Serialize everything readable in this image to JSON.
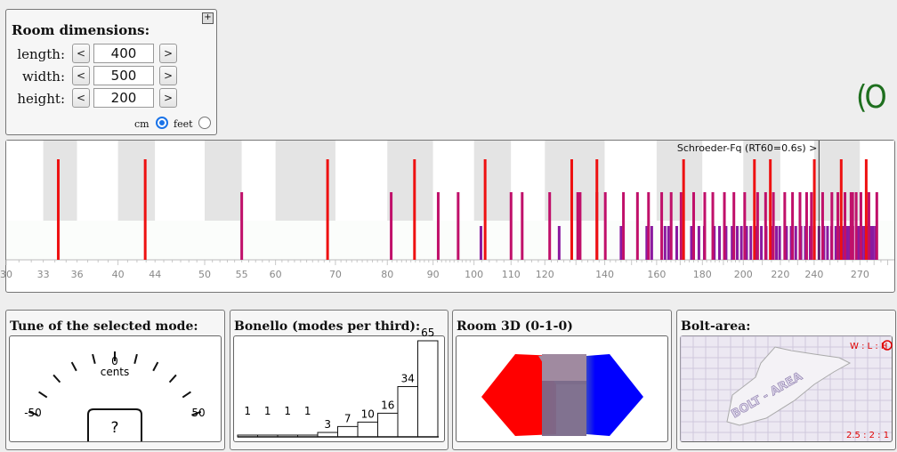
{
  "room": {
    "title": "Room dimensions:",
    "rows": [
      {
        "label": "length:",
        "value": "400"
      },
      {
        "label": "width:",
        "value": "500"
      },
      {
        "label": "height:",
        "value": "200"
      }
    ],
    "dec": "<",
    "inc": ">",
    "unit_cm": "cm",
    "unit_feet": "feet",
    "selected_unit": "cm"
  },
  "spectrum": {
    "schroeder_label": "Schroeder-Fq (RT60=0.6s) >",
    "schroeder_hz": 243,
    "axis_ticks": [
      30,
      33,
      36,
      40,
      44,
      50,
      55,
      60,
      70,
      80,
      90,
      100,
      110,
      120,
      140,
      160,
      180,
      200,
      220,
      240,
      270
    ],
    "axial_modes_hz": [
      34.3,
      42.9,
      68.6,
      85.8,
      102.9,
      128.6,
      137.2,
      171.5,
      205.8,
      214.4,
      240.1,
      257.3,
      274.4
    ],
    "tangential_modes_hz": [
      55.0,
      80.8,
      91.2,
      96.0,
      110.0,
      113.2,
      121.5,
      130.6,
      131.4,
      137.2,
      140.2,
      146.9,
      152.3,
      156.7,
      162.1,
      166.1,
      170.4,
      176.0,
      181.1,
      184.9,
      190.5,
      195.2,
      200.7,
      207.5,
      211.8,
      216.1,
      222.5,
      227.0,
      231.4,
      235.4,
      238.3,
      245.3,
      251.2,
      255.1,
      259.8,
      263.9,
      265.0,
      267.4,
      270.7,
      276.3,
      282.0
    ],
    "oblique_modes_hz": [
      101.8,
      124.5,
      146.0,
      156.0,
      158.0,
      163.5,
      165.0,
      168.5,
      175.0,
      178.4,
      180.9,
      185.6,
      188.1,
      191.3,
      194.3,
      196.9,
      199.0,
      201.7,
      203.9,
      206.4,
      209.5,
      212.1,
      214.9,
      217.8,
      219.6,
      223.5,
      226.2,
      228.9,
      232.0,
      234.6,
      237.6,
      240.1,
      243.0,
      246.1,
      248.4,
      251.0,
      253.8,
      256.2,
      258.6,
      261.2,
      262.8,
      265.1,
      267.9,
      269.5,
      271.8,
      273.6,
      275.1,
      277.7,
      279.4,
      281.3
    ]
  },
  "tune": {
    "title": "Tune of the selected mode:",
    "zero_label": "0",
    "unit": "cents",
    "left_label": "-50",
    "right_label": "50",
    "value_display": "?"
  },
  "bonello": {
    "title": "Bonello (modes per third):",
    "values": [
      1,
      1,
      1,
      1,
      3,
      7,
      10,
      16,
      34,
      65
    ]
  },
  "room3d": {
    "title": "Room 3D (0-1-0)",
    "colors": {
      "left": "#ff0000",
      "right": "#0000ff",
      "middle": "#7a6a8a"
    }
  },
  "bolt": {
    "title": "Bolt-area:",
    "corner_label": "W : L : H",
    "ratio": "2.5 : 2 : 1",
    "area_text": "BOLT - AREA",
    "accent": "#e00000"
  }
}
